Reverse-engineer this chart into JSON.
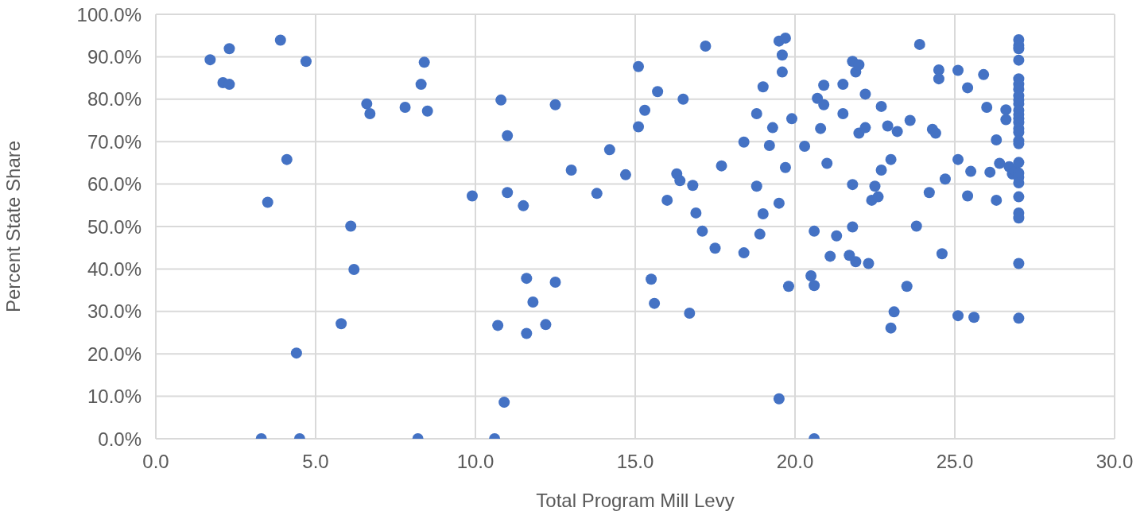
{
  "chart_data": {
    "type": "scatter",
    "xlabel": "Total Program Mill Levy",
    "ylabel": "Percent State Share",
    "color": "#4472c4",
    "marker": "circle",
    "grid": true,
    "xlim": [
      0,
      30
    ],
    "xticks": [
      {
        "value": 0,
        "label": "0.0"
      },
      {
        "value": 5,
        "label": "5.0"
      },
      {
        "value": 10,
        "label": "10.0"
      },
      {
        "value": 15,
        "label": "15.0"
      },
      {
        "value": 20,
        "label": "20.0"
      },
      {
        "value": 25,
        "label": "25.0"
      },
      {
        "value": 30,
        "label": "30.0"
      }
    ],
    "ylim": [
      0,
      100
    ],
    "yticks": [
      {
        "value": 0,
        "label": "0.0%"
      },
      {
        "value": 10,
        "label": "10.0%"
      },
      {
        "value": 20,
        "label": "20.0%"
      },
      {
        "value": 30,
        "label": "30.0%"
      },
      {
        "value": 40,
        "label": "40.0%"
      },
      {
        "value": 50,
        "label": "50.0%"
      },
      {
        "value": 60,
        "label": "60.0%"
      },
      {
        "value": 70,
        "label": "70.0%"
      },
      {
        "value": 80,
        "label": "80.0%"
      },
      {
        "value": 90,
        "label": "90.0%"
      },
      {
        "value": 100,
        "label": "100.0%"
      }
    ],
    "x": [
      1.7,
      2.1,
      2.3,
      2.3,
      3.9,
      3.5,
      3.3,
      4.1,
      4.7,
      4.4,
      4.5,
      6.1,
      6.2,
      5.8,
      6.6,
      6.7,
      7.8,
      8.2,
      8.3,
      8.4,
      8.5,
      9.9,
      10.6,
      10.8,
      10.7,
      10.9,
      11.0,
      11.0,
      11.5,
      11.6,
      11.8,
      11.6,
      12.2,
      12.5,
      12.5,
      13.0,
      13.8,
      14.2,
      14.7,
      15.1,
      15.1,
      15.3,
      15.5,
      15.6,
      15.7,
      16.0,
      16.3,
      16.4,
      16.5,
      16.7,
      16.8,
      16.9,
      17.1,
      17.2,
      17.5,
      17.7,
      18.4,
      18.4,
      18.8,
      18.8,
      18.9,
      19.0,
      19.0,
      19.2,
      19.3,
      19.5,
      19.7,
      19.6,
      19.6,
      19.5,
      19.5,
      19.7,
      19.8,
      19.9,
      20.3,
      20.5,
      20.6,
      20.6,
      20.6,
      20.7,
      20.8,
      20.9,
      20.9,
      21.0,
      21.1,
      21.3,
      21.5,
      21.5,
      21.8,
      21.7,
      21.8,
      21.8,
      21.9,
      21.9,
      22.0,
      22.0,
      22.2,
      22.2,
      22.3,
      22.4,
      22.5,
      22.6,
      22.7,
      22.7,
      22.9,
      23.0,
      23.0,
      23.1,
      23.2,
      23.5,
      23.6,
      23.8,
      23.9,
      24.2,
      24.3,
      24.4,
      24.5,
      24.5,
      24.6,
      24.7,
      25.1,
      25.1,
      25.1,
      25.4,
      25.4,
      25.5,
      25.6,
      25.9,
      26.0,
      26.1,
      26.3,
      26.3,
      26.4,
      26.6,
      26.6,
      26.7,
      26.8,
      26.9,
      27.0,
      27.0,
      27.0,
      27.0,
      27.0,
      27.0,
      27.0,
      27.0,
      27.0,
      27.0,
      27.0,
      27.0,
      27.0,
      27.0,
      27.0,
      27.0,
      27.0,
      27.0,
      27.0,
      27.0,
      27.0,
      27.0,
      27.0,
      27.0,
      27.0,
      27.0,
      27.0
    ],
    "values": [
      89.3,
      83.9,
      83.5,
      91.9,
      93.9,
      55.7,
      0,
      65.8,
      88.9,
      20.2,
      0,
      50.1,
      39.9,
      27.1,
      78.9,
      76.6,
      78.1,
      0,
      83.5,
      88.7,
      77.2,
      57.2,
      0,
      79.8,
      26.7,
      8.6,
      71.4,
      58.0,
      54.9,
      37.8,
      32.2,
      24.8,
      26.9,
      78.7,
      36.9,
      63.3,
      57.8,
      68.1,
      62.2,
      87.7,
      73.5,
      77.4,
      37.6,
      31.9,
      81.8,
      56.2,
      62.4,
      60.8,
      80.0,
      29.6,
      59.7,
      53.2,
      48.9,
      92.5,
      44.9,
      64.3,
      69.9,
      43.8,
      76.6,
      59.5,
      48.2,
      82.9,
      53.0,
      69.1,
      73.3,
      93.7,
      94.4,
      90.4,
      86.4,
      55.5,
      9.4,
      63.9,
      35.9,
      75.4,
      68.9,
      38.4,
      48.9,
      36.1,
      0,
      80.2,
      73.1,
      83.3,
      78.7,
      64.9,
      43.0,
      47.8,
      76.6,
      83.5,
      88.9,
      43.2,
      49.9,
      59.9,
      41.7,
      86.4,
      88.1,
      72.0,
      81.2,
      73.3,
      41.3,
      56.2,
      59.5,
      57.0,
      78.3,
      63.3,
      73.7,
      26.1,
      65.8,
      29.9,
      72.4,
      35.9,
      75.0,
      50.1,
      92.9,
      58.0,
      72.9,
      72.0,
      86.9,
      84.8,
      43.6,
      61.2,
      86.8,
      65.8,
      29.0,
      82.7,
      57.2,
      63.0,
      28.6,
      85.8,
      78.1,
      62.8,
      70.4,
      56.2,
      64.9,
      77.5,
      75.2,
      64.1,
      62.4,
      63.1,
      94.0,
      92.7,
      91.9,
      89.2,
      84.8,
      83.5,
      82.3,
      80.8,
      79.8,
      78.9,
      77.4,
      76.4,
      75.4,
      74.5,
      73.1,
      72.2,
      70.2,
      69.5,
      65.1,
      62.6,
      61.6,
      60.3,
      57.0,
      53.2,
      52.0,
      41.3,
      28.4
    ]
  }
}
